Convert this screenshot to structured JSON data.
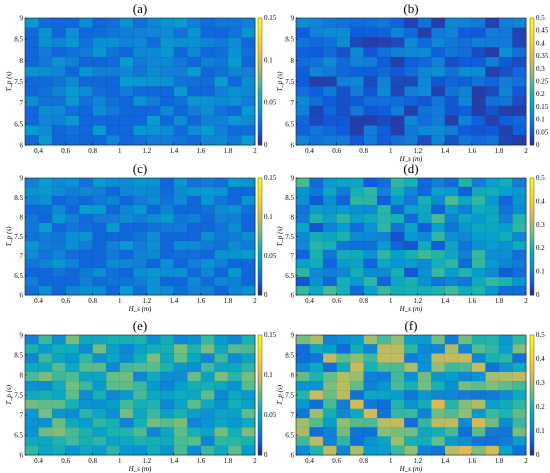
{
  "chart_data": [
    {
      "panel": "(a)",
      "type": "heatmap",
      "xlabel": "",
      "ylabel": "T_p (s)",
      "zmax": 0.15,
      "cbar_ticks": [
        0,
        0.05,
        0.1,
        0.15
      ],
      "nx": 17,
      "ny": 13,
      "seed": 11,
      "base": 0.02,
      "spread": 0.035
    },
    {
      "panel": "(b)",
      "type": "heatmap",
      "xlabel": "H_s (m)",
      "ylabel": "T_p (s)",
      "zmax": 0.5,
      "cbar_ticks": [
        0,
        0.05,
        0.1,
        0.15,
        0.2,
        0.25,
        0.3,
        0.35,
        0.4,
        0.45,
        0.5
      ],
      "nx": 17,
      "ny": 13,
      "seed": 23,
      "base": 0.04,
      "spread": 0.12
    },
    {
      "panel": "(c)",
      "type": "heatmap",
      "xlabel": "H_s (m)",
      "ylabel": "T_p (s)",
      "zmax": 0.15,
      "cbar_ticks": [
        0,
        0.05,
        0.1,
        0.15
      ],
      "nx": 17,
      "ny": 13,
      "seed": 37,
      "base": 0.02,
      "spread": 0.035
    },
    {
      "panel": "(d)",
      "type": "heatmap",
      "xlabel": "H_s (m)",
      "ylabel": "T_p (s)",
      "zmax": 0.5,
      "cbar_ticks": [
        0,
        0.1,
        0.2,
        0.3,
        0.4,
        0.5
      ],
      "nx": 17,
      "ny": 13,
      "seed": 41,
      "base": 0.09,
      "spread": 0.2
    },
    {
      "panel": "(e)",
      "type": "heatmap",
      "xlabel": "H_s (m)",
      "ylabel": "T_p (s)",
      "zmax": 0.15,
      "cbar_ticks": [
        0,
        0.05,
        0.1,
        0.15
      ],
      "nx": 17,
      "ny": 13,
      "seed": 53,
      "base": 0.045,
      "spread": 0.05
    },
    {
      "panel": "(f)",
      "type": "heatmap",
      "xlabel": "H_s (m)",
      "ylabel": "T_p (s)",
      "zmax": 0.5,
      "cbar_ticks": [
        0,
        0.1,
        0.2,
        0.3,
        0.4,
        0.5
      ],
      "nx": 17,
      "ny": 13,
      "seed": 67,
      "base": 0.14,
      "spread": 0.27
    }
  ],
  "shared_axes": {
    "x_range": [
      0.3,
      2.0
    ],
    "x_ticks": [
      "0.4",
      "0.6",
      "0.8",
      "1",
      "1.2",
      "1.4",
      "1.6",
      "1.8",
      "2"
    ],
    "x_tick_values": [
      0.4,
      0.6,
      0.8,
      1.0,
      1.2,
      1.4,
      1.6,
      1.8,
      2.0
    ],
    "y_range": [
      6,
      9
    ],
    "y_ticks": [
      "6",
      "6.5",
      "7",
      "7.5",
      "8",
      "8.5",
      "9"
    ],
    "y_tick_values": [
      6,
      6.5,
      7,
      7.5,
      8,
      8.5,
      9
    ]
  }
}
